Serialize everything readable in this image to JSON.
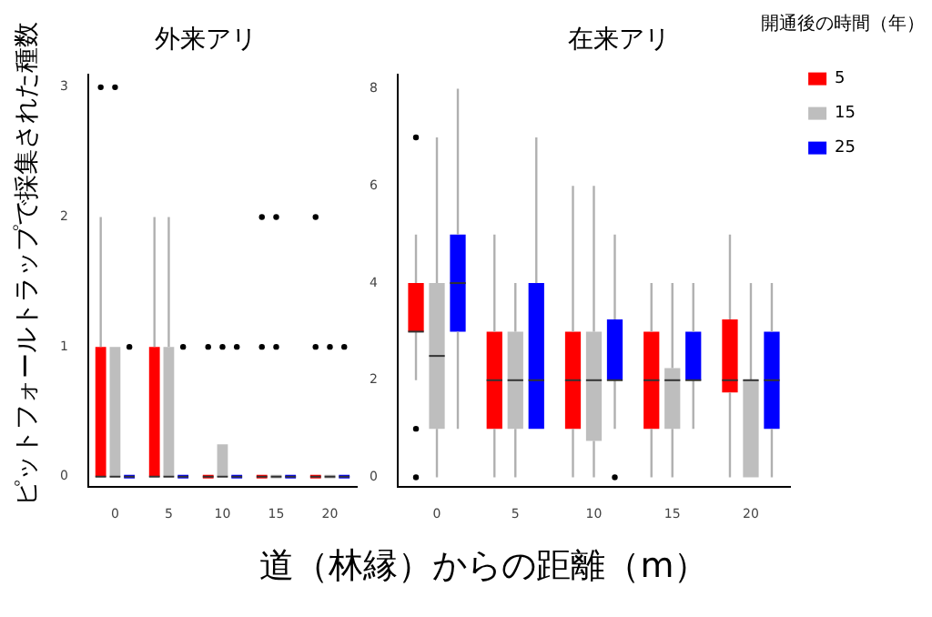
{
  "chart_data": [
    {
      "type": "box",
      "title": "外来アリ",
      "ylabel": "ピットフォールトラップで採集された種数",
      "xlabel": "道（林縁）からの距離（m）",
      "categories": [
        "0",
        "5",
        "10",
        "15",
        "20"
      ],
      "ylim": [
        -0.08,
        3.1
      ],
      "yticks": [
        0,
        1,
        2,
        3
      ],
      "series": [
        {
          "color": "#ff0000",
          "boxes": [
            {
              "low": 0,
              "q1": 0,
              "median": 0,
              "q3": 1,
              "high": 2,
              "outliers": [
                3
              ]
            },
            {
              "low": 0,
              "q1": 0,
              "median": 0,
              "q3": 1,
              "high": 2
            },
            {
              "low": 0,
              "q1": 0,
              "median": 0,
              "q3": 0,
              "high": 0,
              "outliers": [
                1
              ]
            },
            {
              "low": 0,
              "q1": 0,
              "median": 0,
              "q3": 0,
              "high": 0,
              "outliers": [
                1,
                2
              ]
            },
            {
              "low": 0,
              "q1": 0,
              "median": 0,
              "q3": 0,
              "high": 0,
              "outliers": [
                1,
                2
              ]
            }
          ]
        },
        {
          "color": "#bebebe",
          "boxes": [
            {
              "low": 0,
              "q1": 0,
              "median": 0,
              "q3": 1,
              "high": 1,
              "outliers": [
                3
              ]
            },
            {
              "low": 0,
              "q1": 0,
              "median": 0,
              "q3": 1,
              "high": 2
            },
            {
              "low": 0,
              "q1": 0,
              "median": 0,
              "q3": 0.25,
              "high": 0.25,
              "outliers": [
                1
              ]
            },
            {
              "low": 0,
              "q1": 0,
              "median": 0,
              "q3": 0,
              "high": 0,
              "outliers": [
                1,
                2
              ]
            },
            {
              "low": 0,
              "q1": 0,
              "median": 0,
              "q3": 0,
              "high": 0,
              "outliers": [
                1
              ]
            }
          ]
        },
        {
          "color": "#0000ff",
          "boxes": [
            {
              "low": 0,
              "q1": 0,
              "median": 0,
              "q3": 0,
              "high": 0,
              "outliers": [
                1
              ]
            },
            {
              "low": 0,
              "q1": 0,
              "median": 0,
              "q3": 0,
              "high": 0,
              "outliers": [
                1
              ]
            },
            {
              "low": 0,
              "q1": 0,
              "median": 0,
              "q3": 0,
              "high": 0,
              "outliers": [
                1
              ]
            },
            {
              "low": 0,
              "q1": 0,
              "median": 0,
              "q3": 0,
              "high": 0
            },
            {
              "low": 0,
              "q1": 0,
              "median": 0,
              "q3": 0,
              "high": 0,
              "outliers": [
                1
              ]
            }
          ]
        }
      ]
    },
    {
      "type": "box",
      "title": "在来アリ",
      "categories": [
        "0",
        "5",
        "10",
        "15",
        "20"
      ],
      "ylim": [
        -0.2,
        8.3
      ],
      "yticks": [
        0,
        2,
        4,
        6,
        8
      ],
      "legend": "right",
      "legend_title": "開通後の時間（年）",
      "series": [
        {
          "name": "5",
          "color": "#ff0000",
          "boxes": [
            {
              "low": 2,
              "q1": 3,
              "median": 3,
              "q3": 4,
              "high": 5,
              "outliers": [
                0,
                1,
                7
              ]
            },
            {
              "low": 0,
              "q1": 1,
              "median": 2,
              "q3": 3,
              "high": 5
            },
            {
              "low": 0,
              "q1": 1,
              "median": 2,
              "q3": 3,
              "high": 6
            },
            {
              "low": 0,
              "q1": 1,
              "median": 2,
              "q3": 3,
              "high": 4
            },
            {
              "low": 0,
              "q1": 1.75,
              "median": 2,
              "q3": 3.25,
              "high": 5
            }
          ]
        },
        {
          "name": "15",
          "color": "#bebebe",
          "boxes": [
            {
              "low": 0,
              "q1": 1,
              "median": 2.5,
              "q3": 4,
              "high": 7
            },
            {
              "low": 0,
              "q1": 1,
              "median": 2,
              "q3": 3,
              "high": 4
            },
            {
              "low": 0,
              "q1": 0.75,
              "median": 2,
              "q3": 3,
              "high": 6
            },
            {
              "low": 0,
              "q1": 1,
              "median": 2,
              "q3": 2.25,
              "high": 4
            },
            {
              "low": 0,
              "q1": 0,
              "median": 2,
              "q3": 2,
              "high": 4
            }
          ]
        },
        {
          "name": "25",
          "color": "#0000ff",
          "boxes": [
            {
              "low": 1,
              "q1": 3,
              "median": 4,
              "q3": 5,
              "high": 8
            },
            {
              "low": 1,
              "q1": 1,
              "median": 2,
              "q3": 4,
              "high": 7
            },
            {
              "low": 1,
              "q1": 2,
              "median": 2,
              "q3": 3.25,
              "high": 5,
              "outliers": [
                0
              ]
            },
            {
              "low": 1,
              "q1": 2,
              "median": 2,
              "q3": 3,
              "high": 4
            },
            {
              "low": 0,
              "q1": 1,
              "median": 2,
              "q3": 3,
              "high": 4
            }
          ]
        }
      ]
    }
  ]
}
